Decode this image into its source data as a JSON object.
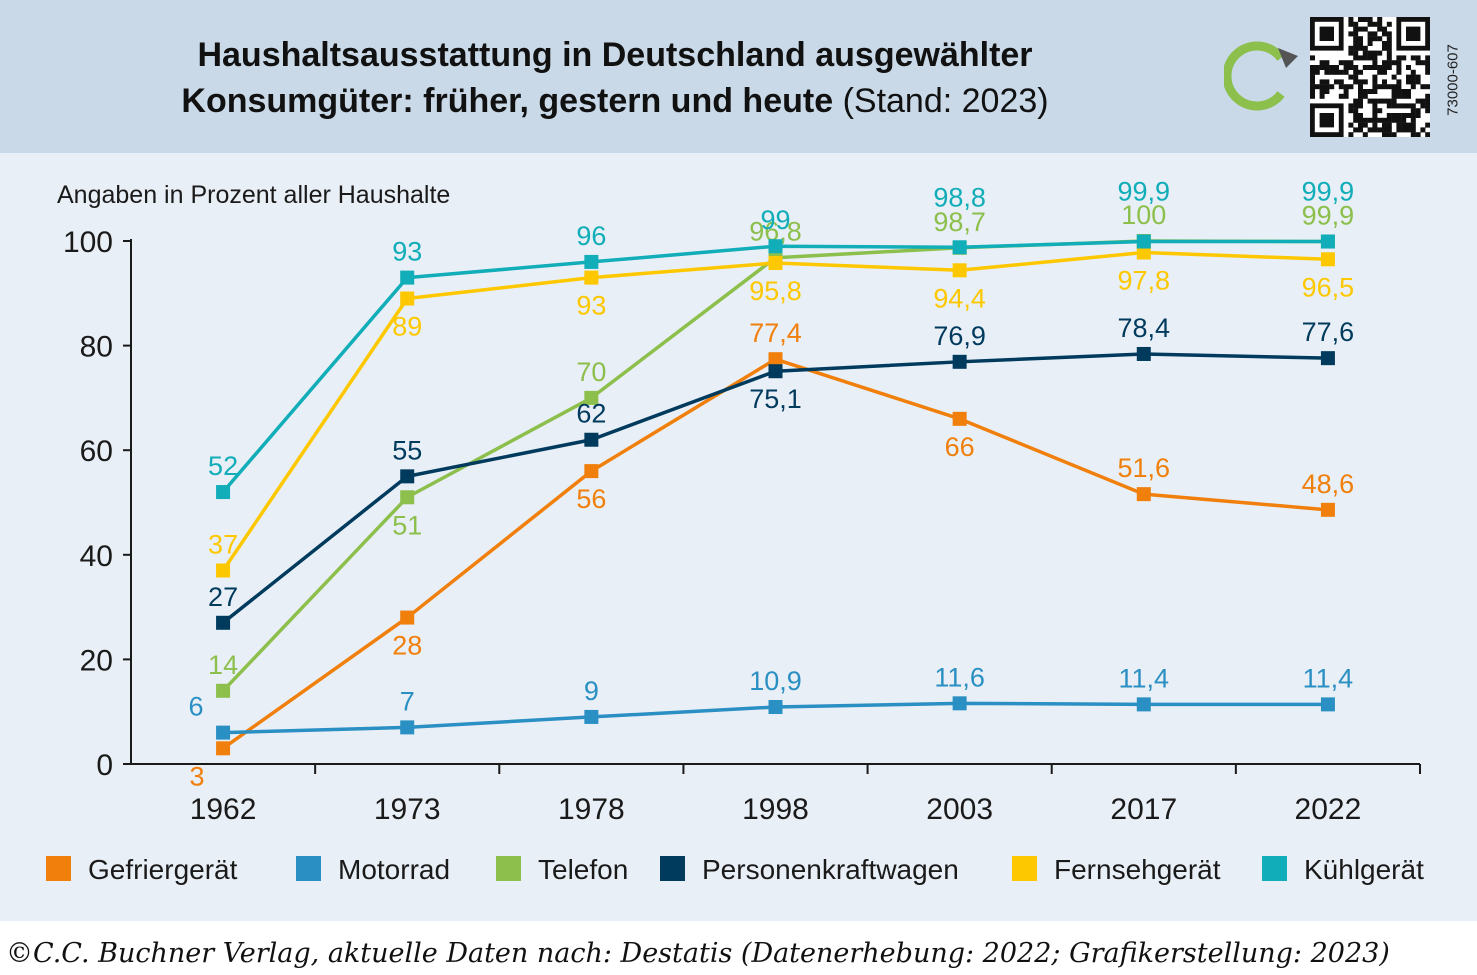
{
  "header": {
    "title_bold_line1": "Haushaltsausstattung in Deutschland ausgewählter",
    "title_bold_line2": "Konsumgüter: früher, gestern und heute",
    "title_suffix": "(Stand: 2023)",
    "code": "73000-607",
    "logo_icon": "refresh-arrow-icon",
    "qr_icon": "qr-code-icon"
  },
  "footer": {
    "source": "©C.C. Buchner Verlag, aktuelle Daten nach: Destatis (Datenerhebung: 2022; Grafikerstellung: 2023)"
  },
  "colors": {
    "header_bg": "#c9d9e8",
    "chart_bg": "#e9eff6",
    "gefriergeraet": "#f07f0b",
    "motorrad": "#2a8fc3",
    "telefon": "#8cbf4c",
    "personenkraftwagen": "#003a5d",
    "fernsehgeraet": "#fdc800",
    "kuehlgeraet": "#11adb8"
  },
  "chart_data": {
    "type": "line",
    "title": "Haushaltsausstattung in Deutschland ausgewählter Konsumgüter: früher, gestern und heute (Stand: 2023)",
    "ylabel": "Angaben in Prozent aller Haushalte",
    "xlabel": "",
    "categories": [
      "1962",
      "1973",
      "1978",
      "1998",
      "2003",
      "2017",
      "2022"
    ],
    "ylim": [
      0,
      100
    ],
    "yticks": [
      0,
      20,
      40,
      60,
      80,
      100
    ],
    "grid": false,
    "legend_position": "bottom",
    "series": [
      {
        "name": "Gefriergerät",
        "color": "#f07f0b",
        "values": [
          3,
          28,
          56,
          77.4,
          66,
          51.6,
          48.6
        ],
        "labels": [
          "3",
          "28",
          "56",
          "77,4",
          "66",
          "51,6",
          "48,6"
        ]
      },
      {
        "name": "Motorrad",
        "color": "#2a8fc3",
        "values": [
          6,
          7,
          9,
          10.9,
          11.6,
          11.4,
          11.4
        ],
        "labels": [
          "6",
          "7",
          "9",
          "10,9",
          "11,6",
          "11,4",
          "11,4"
        ]
      },
      {
        "name": "Telefon",
        "color": "#8cbf4c",
        "values": [
          14,
          51,
          70,
          96.8,
          98.7,
          100,
          99.9
        ],
        "labels": [
          "14",
          "51",
          "70",
          "96,8",
          "98,7",
          "100",
          "99,9"
        ]
      },
      {
        "name": "Personenkraftwagen",
        "color": "#003a5d",
        "values": [
          27,
          55,
          62,
          75.1,
          76.9,
          78.4,
          77.6
        ],
        "labels": [
          "27",
          "55",
          "62",
          "75,1",
          "76,9",
          "78,4",
          "77,6"
        ]
      },
      {
        "name": "Fernsehgerät",
        "color": "#fdc800",
        "values": [
          37,
          89,
          93,
          95.8,
          94.4,
          97.8,
          96.5
        ],
        "labels": [
          "37",
          "89",
          "93",
          "95,8",
          "94,4",
          "97,8",
          "96,5"
        ]
      },
      {
        "name": "Kühlgerät",
        "color": "#11adb8",
        "values": [
          52,
          93,
          96,
          99,
          98.8,
          99.9,
          99.9
        ],
        "labels": [
          "52",
          "93",
          "96",
          "99",
          "98,8",
          "99,9",
          "99,9"
        ]
      }
    ]
  }
}
